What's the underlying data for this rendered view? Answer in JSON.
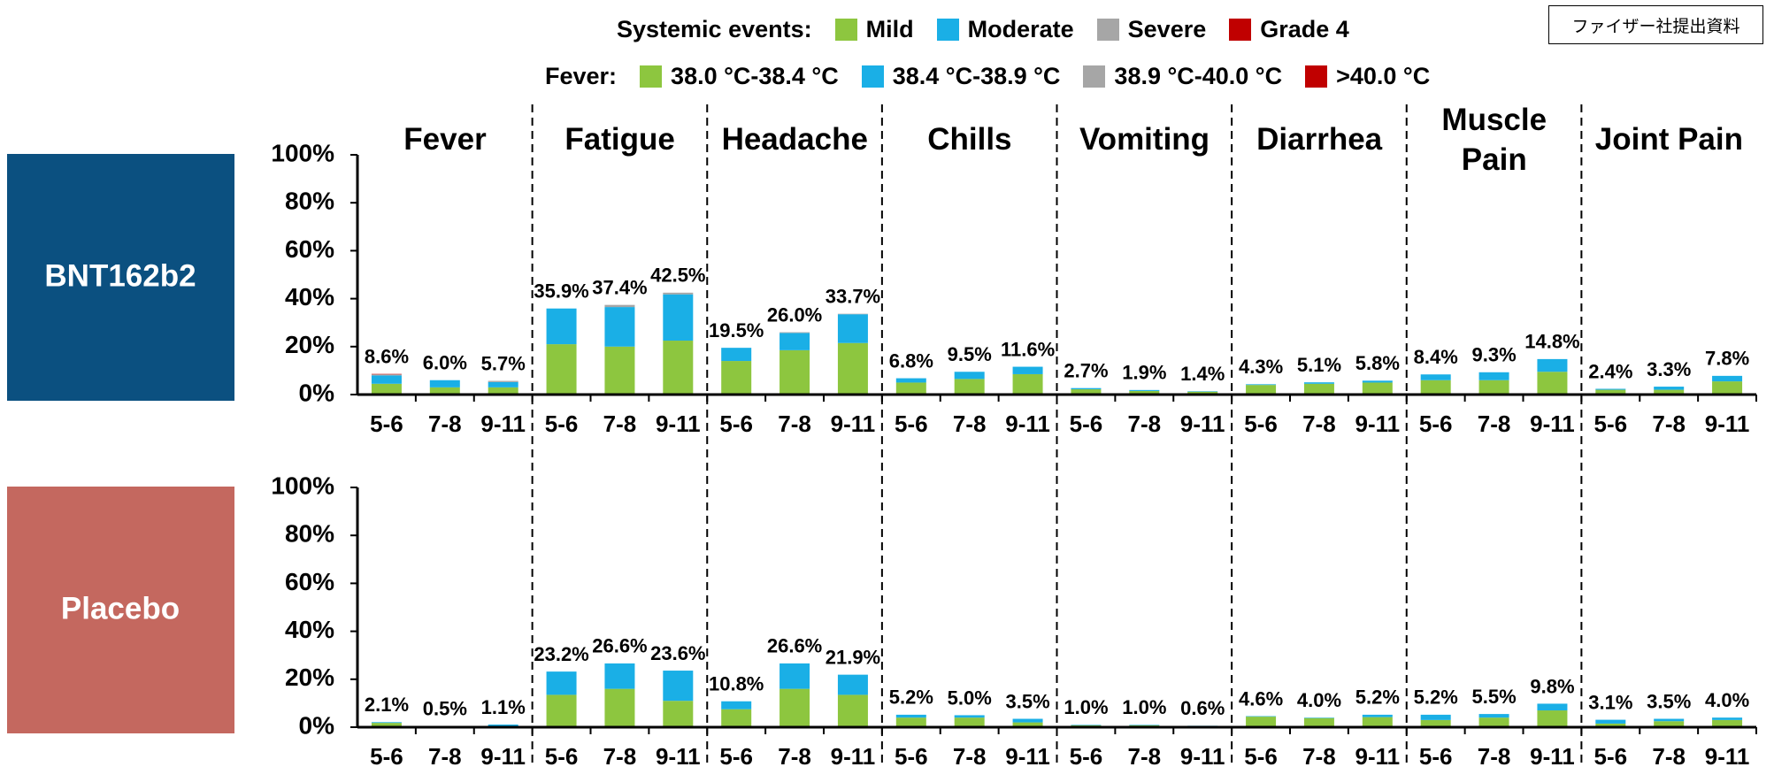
{
  "note": "ファイザー社提出資料",
  "legend_title": "Systemic events:",
  "fever_legend_title": "Fever:",
  "fever_legend": [
    "38.0 °C-38.4 °C",
    "38.4 °C-38.9 °C",
    "38.9 °C-40.0 °C",
    ">40.0 °C"
  ],
  "groups": [
    "Fever",
    "Fatigue",
    "Headache",
    "Chills",
    "Vomiting",
    "Diarrhea",
    "Muscle Pain",
    "Joint Pain"
  ],
  "chart_data": [
    {
      "type": "bar",
      "stacked": true,
      "title": "BNT162b2",
      "panel_color": "#0b5080",
      "categories": [
        "5-6",
        "7-8",
        "9-11",
        "5-6",
        "7-8",
        "9-11",
        "5-6",
        "7-8",
        "9-11",
        "5-6",
        "7-8",
        "9-11",
        "5-6",
        "7-8",
        "9-11",
        "5-6",
        "7-8",
        "9-11",
        "5-6",
        "7-8",
        "9-11",
        "5-6",
        "7-8",
        "9-11"
      ],
      "series": [
        {
          "name": "Mild",
          "color": "#8dc63f",
          "values": [
            4.5,
            3,
            3,
            21,
            20,
            22.5,
            14,
            18.5,
            21.5,
            5,
            6.5,
            8.5,
            2.2,
            1.5,
            1.2,
            4,
            4.5,
            5,
            6,
            6,
            9.5,
            2,
            2,
            5.5
          ]
        },
        {
          "name": "Moderate",
          "color": "#1aafe6",
          "values": [
            3.5,
            3,
            2.2,
            14.9,
            16.5,
            19.3,
            5.5,
            7.2,
            12,
            1.8,
            3,
            3.1,
            0.5,
            0.4,
            0.2,
            0.3,
            0.6,
            0.8,
            2.4,
            3.3,
            5.3,
            0.4,
            1.3,
            2.3
          ]
        },
        {
          "name": "Severe",
          "color": "#a6a6a6",
          "values": [
            0.4,
            0,
            0.5,
            0,
            0.9,
            0.7,
            0,
            0.3,
            0.2,
            0,
            0,
            0,
            0,
            0,
            0,
            0,
            0,
            0,
            0,
            0,
            0,
            0,
            0,
            0
          ]
        },
        {
          "name": "Grade 4",
          "color": "#c00000",
          "values": [
            0.2,
            0,
            0,
            0,
            0,
            0,
            0,
            0,
            0,
            0,
            0,
            0,
            0,
            0,
            0,
            0,
            0,
            0,
            0,
            0,
            0,
            0,
            0,
            0
          ]
        }
      ],
      "totals": [
        8.6,
        6.0,
        5.7,
        35.9,
        37.4,
        42.5,
        19.5,
        26.0,
        33.7,
        6.8,
        9.5,
        11.6,
        2.7,
        1.9,
        1.4,
        4.3,
        5.1,
        5.8,
        8.4,
        9.3,
        14.8,
        2.4,
        3.3,
        7.8
      ],
      "total_labels": [
        "8.6%",
        "6.0%",
        "5.7%",
        "35.9%",
        "37.4%",
        "42.5%",
        "19.5%",
        "26.0%",
        "33.7%",
        "6.8%",
        "9.5%",
        "11.6%",
        "2.7%",
        "1.9%",
        "1.4%",
        "4.3%",
        "5.1%",
        "5.8%",
        "8.4%",
        "9.3%",
        "14.8%",
        "2.4%",
        "3.3%",
        "7.8%"
      ],
      "ylim": [
        0,
        100
      ],
      "yticks": [
        {
          "value": 0,
          "label": "0%"
        },
        {
          "value": 20,
          "label": "20%"
        },
        {
          "value": 40,
          "label": "40%"
        },
        {
          "value": 60,
          "label": "60%"
        },
        {
          "value": 80,
          "label": "80%"
        },
        {
          "value": 100,
          "label": "100%"
        }
      ]
    },
    {
      "type": "bar",
      "stacked": true,
      "title": "Placebo",
      "panel_color": "#c4685f",
      "categories": [
        "5-6",
        "7-8",
        "9-11",
        "5-6",
        "7-8",
        "9-11",
        "5-6",
        "7-8",
        "9-11",
        "5-6",
        "7-8",
        "9-11",
        "5-6",
        "7-8",
        "9-11",
        "5-6",
        "7-8",
        "9-11",
        "5-6",
        "7-8",
        "9-11",
        "5-6",
        "7-8",
        "9-11"
      ],
      "series": [
        {
          "name": "Mild",
          "color": "#8dc63f",
          "values": [
            1.8,
            0.3,
            0.5,
            13.5,
            16,
            11,
            7.5,
            16,
            13.5,
            4,
            4,
            2,
            0.8,
            0.8,
            0.5,
            4.4,
            3.8,
            4.2,
            3,
            4,
            7,
            1.5,
            2.5,
            3
          ]
        },
        {
          "name": "Moderate",
          "color": "#1aafe6",
          "values": [
            0.3,
            0.2,
            0.6,
            9.7,
            10.6,
            12.6,
            3.3,
            10.6,
            8.4,
            1.2,
            1,
            1.5,
            0.2,
            0.2,
            0.1,
            0.2,
            0.2,
            1,
            2.2,
            1.5,
            2.8,
            1.6,
            1,
            1
          ]
        },
        {
          "name": "Severe",
          "color": "#a6a6a6",
          "values": [
            0,
            0,
            0,
            0,
            0,
            0,
            0,
            0,
            0,
            0,
            0,
            0,
            0,
            0,
            0,
            0,
            0,
            0,
            0,
            0,
            0,
            0,
            0,
            0
          ]
        },
        {
          "name": "Grade 4",
          "color": "#c00000",
          "values": [
            0,
            0,
            0,
            0,
            0,
            0,
            0,
            0,
            0,
            0,
            0,
            0,
            0,
            0,
            0,
            0,
            0,
            0,
            0,
            0,
            0,
            0,
            0,
            0
          ]
        }
      ],
      "totals": [
        2.1,
        0.5,
        1.1,
        23.2,
        26.6,
        23.6,
        10.8,
        26.6,
        21.9,
        5.2,
        5.0,
        3.5,
        1.0,
        1.0,
        0.6,
        4.6,
        4.0,
        5.2,
        5.2,
        5.5,
        9.8,
        3.1,
        3.5,
        4.0
      ],
      "total_labels": [
        "2.1%",
        "0.5%",
        "1.1%",
        "23.2%",
        "26.6%",
        "23.6%",
        "10.8%",
        "26.6%",
        "21.9%",
        "5.2%",
        "5.0%",
        "3.5%",
        "1.0%",
        "1.0%",
        "0.6%",
        "4.6%",
        "4.0%",
        "5.2%",
        "5.2%",
        "5.5%",
        "9.8%",
        "3.1%",
        "3.5%",
        "4.0%"
      ],
      "ylim": [
        0,
        100
      ],
      "yticks": [
        {
          "value": 0,
          "label": "0%"
        },
        {
          "value": 20,
          "label": "20%"
        },
        {
          "value": 40,
          "label": "40%"
        },
        {
          "value": 60,
          "label": "60%"
        },
        {
          "value": 80,
          "label": "80%"
        },
        {
          "value": 100,
          "label": "100%"
        }
      ]
    }
  ]
}
